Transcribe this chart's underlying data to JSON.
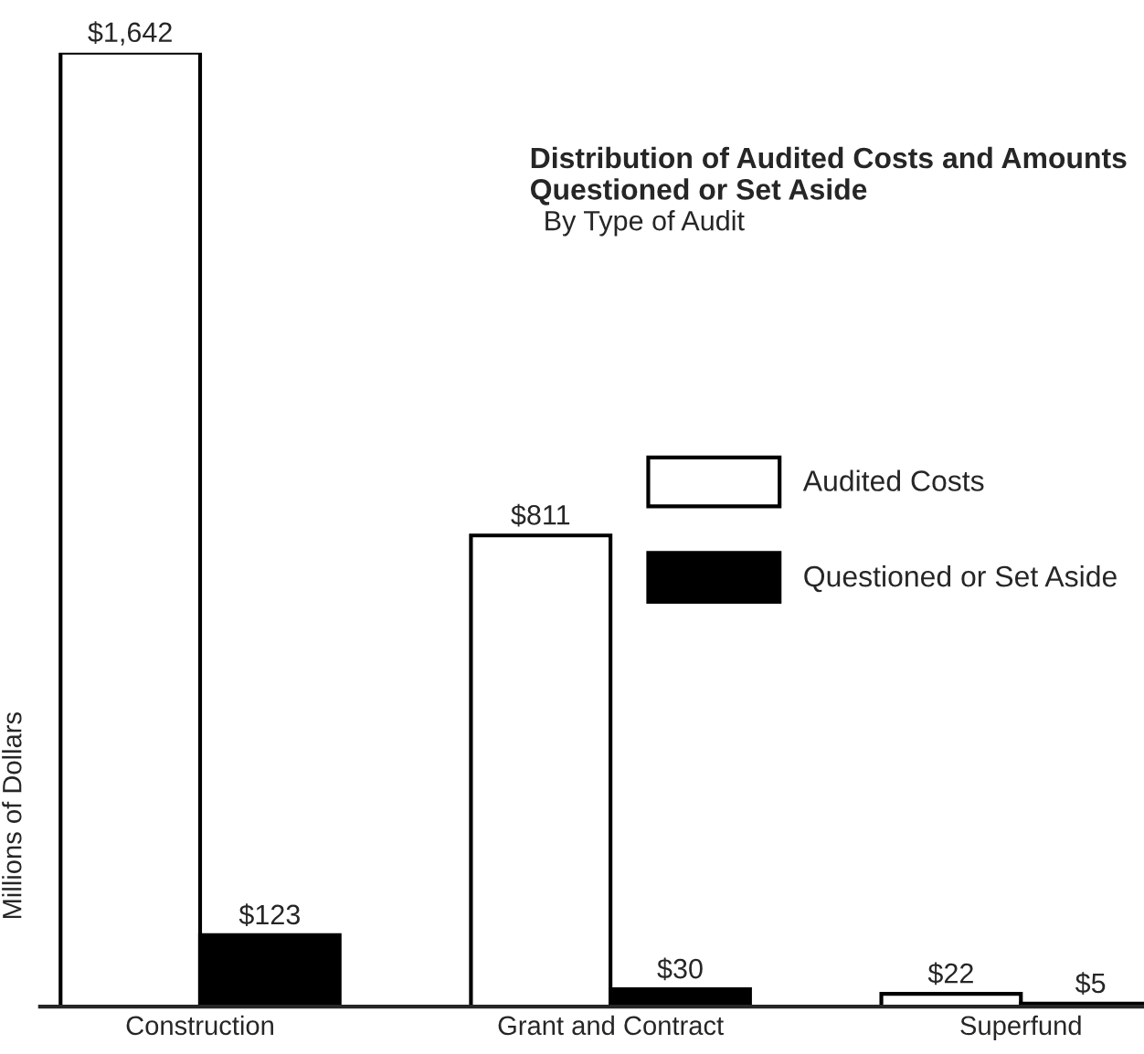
{
  "chart_data": {
    "type": "bar",
    "title": "Distribution of Audited Costs and Amounts Questioned or Set Aside",
    "subtitle": "By Type of Audit",
    "ylabel": "Millions of Dollars",
    "categories": [
      "Construction",
      "Grant and Contract",
      "Superfund"
    ],
    "series": [
      {
        "name": "Audited Costs",
        "color": "#ffffff",
        "values": [
          1642,
          811,
          22
        ],
        "value_labels": [
          "$1,642",
          "$811",
          "$22"
        ]
      },
      {
        "name": "Questioned or Set Aside",
        "color": "#000000",
        "values": [
          123,
          30,
          5
        ],
        "value_labels": [
          "$123",
          "$30",
          "$5"
        ]
      }
    ],
    "tick_labels": "x",
    "legend": "right",
    "grid": false
  }
}
